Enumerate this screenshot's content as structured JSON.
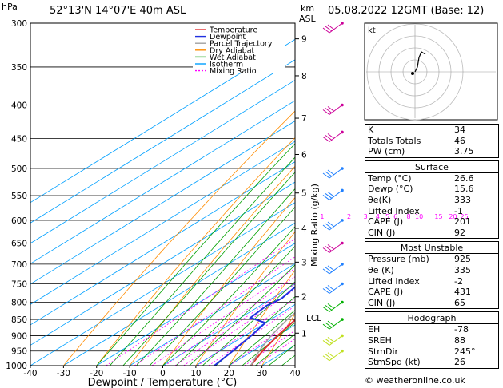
{
  "header": {
    "units_hpa": "hPa",
    "location": "52°13'N  14°07'E  40m  ASL",
    "units_km": "km",
    "units_asl": "ASL",
    "datetime": "05.08.2022  12GMT  (Base: 12)"
  },
  "credit": "© weatheronline.co.uk",
  "colors": {
    "temperature": "#e03030",
    "dewpoint": "#2030e0",
    "parcel": "#a0a0a0",
    "dry_adiabat": "#ff8c00",
    "wet_adiabat": "#00a000",
    "isotherm": "#00a0ff",
    "mixing_ratio": "#ff00ff"
  },
  "chart_data": {
    "type": "line",
    "xlabel": "Dewpoint / Temperature (°C)",
    "ylabel_right": "Mixing Ratio (g/kg)",
    "xlim": [
      -40,
      40
    ],
    "ylim": [
      1000,
      300
    ],
    "x_ticks": [
      -40,
      -30,
      -20,
      -10,
      0,
      10,
      20,
      30,
      40
    ],
    "pressure_levels": [
      300,
      350,
      400,
      450,
      500,
      550,
      600,
      650,
      700,
      750,
      800,
      850,
      900,
      950,
      1000
    ],
    "km_ticks": [
      {
        "label": "9",
        "p": 317
      },
      {
        "label": "8",
        "p": 361
      },
      {
        "label": "7",
        "p": 419
      },
      {
        "label": "6",
        "p": 476
      },
      {
        "label": "5",
        "p": 545
      },
      {
        "label": "4",
        "p": 617
      },
      {
        "label": "3",
        "p": 695
      },
      {
        "label": "2",
        "p": 785
      },
      {
        "label": "1",
        "p": 892
      }
    ],
    "lcl": {
      "label": "LCL",
      "p": 845
    },
    "mixing_ratio_labels": [
      {
        "label": "1",
        "t": -7
      },
      {
        "label": "2",
        "t": 2
      },
      {
        "label": "3",
        "t": 8
      },
      {
        "label": "4",
        "t": 12
      },
      {
        "label": "5",
        "t": 15
      },
      {
        "label": "6",
        "t": 17.5
      },
      {
        "label": "8",
        "t": 21
      },
      {
        "label": "10",
        "t": 24
      },
      {
        "label": "15",
        "t": 30
      },
      {
        "label": "20",
        "t": 34
      },
      {
        "label": "25",
        "t": 37
      }
    ],
    "legend": [
      "Temperature",
      "Dewpoint",
      "Parcel Trajectory",
      "Dry Adiabat",
      "Wet Adiabat",
      "Isotherm",
      "Mixing Ratio"
    ],
    "legend_position": "top-center",
    "series": [
      {
        "name": "Temperature",
        "points": [
          {
            "p": 1000,
            "t": 26.6
          },
          {
            "p": 950,
            "t": 23
          },
          {
            "p": 900,
            "t": 20
          },
          {
            "p": 850,
            "t": 17.5
          },
          {
            "p": 800,
            "t": 17.5
          },
          {
            "p": 750,
            "t": 14.5
          },
          {
            "p": 700,
            "t": 10.5
          },
          {
            "p": 650,
            "t": 7
          },
          {
            "p": 600,
            "t": 3
          },
          {
            "p": 550,
            "t": -2
          },
          {
            "p": 500,
            "t": -7
          },
          {
            "p": 450,
            "t": -13
          },
          {
            "p": 400,
            "t": -20
          },
          {
            "p": 350,
            "t": -28
          },
          {
            "p": 300,
            "t": -37
          }
        ]
      },
      {
        "name": "Dewpoint",
        "points": [
          {
            "p": 1000,
            "t": 15.6
          },
          {
            "p": 950,
            "t": 14
          },
          {
            "p": 900,
            "t": 12
          },
          {
            "p": 860,
            "t": 10
          },
          {
            "p": 845,
            "t": 3
          },
          {
            "p": 810,
            "t": 2
          },
          {
            "p": 790,
            "t": 3
          },
          {
            "p": 750,
            "t": 1
          },
          {
            "p": 700,
            "t": -1
          },
          {
            "p": 650,
            "t": -5
          },
          {
            "p": 620,
            "t": -4
          },
          {
            "p": 600,
            "t": -5
          },
          {
            "p": 550,
            "t": -11
          },
          {
            "p": 500,
            "t": -13
          },
          {
            "p": 460,
            "t": -16
          },
          {
            "p": 430,
            "t": -30
          },
          {
            "p": 400,
            "t": -29
          },
          {
            "p": 370,
            "t": -31
          },
          {
            "p": 350,
            "t": -40
          },
          {
            "p": 340,
            "t": -42
          },
          {
            "p": 300,
            "t": -45
          }
        ]
      },
      {
        "name": "Parcel Trajectory",
        "points": [
          {
            "p": 1000,
            "t": 26.6
          },
          {
            "p": 950,
            "t": 22
          },
          {
            "p": 900,
            "t": 18
          },
          {
            "p": 850,
            "t": 15
          },
          {
            "p": 800,
            "t": 12.5
          },
          {
            "p": 750,
            "t": 9.5
          },
          {
            "p": 700,
            "t": 6.5
          },
          {
            "p": 650,
            "t": 3.2
          },
          {
            "p": 600,
            "t": -0.5
          },
          {
            "p": 550,
            "t": -4.5
          },
          {
            "p": 500,
            "t": -9.5
          },
          {
            "p": 450,
            "t": -15
          },
          {
            "p": 400,
            "t": -21.5
          },
          {
            "p": 350,
            "t": -29
          },
          {
            "p": 300,
            "t": -38
          }
        ]
      }
    ]
  },
  "hodograph": {
    "label": "kt"
  },
  "wind_barb_colors": [
    "#cc0099",
    "#cc0099",
    "#cc0099",
    "#2080ff",
    "#2080ff",
    "#2080ff",
    "#cc0099",
    "#2080ff",
    "#2080ff",
    "#00b000",
    "#00b000",
    "#c0e020",
    "#c0e020"
  ],
  "stats": {
    "indices": [
      {
        "label": "K",
        "value": "34"
      },
      {
        "label": "Totals Totals",
        "value": "46"
      },
      {
        "label": "PW (cm)",
        "value": "3.75"
      }
    ],
    "surface": {
      "title": "Surface",
      "rows": [
        {
          "label": "Temp (°C)",
          "value": "26.6"
        },
        {
          "label": "Dewp (°C)",
          "value": "15.6"
        },
        {
          "label": "θe(K)",
          "value": "333"
        },
        {
          "label": "Lifted Index",
          "value": "-1"
        },
        {
          "label": "CAPE (J)",
          "value": "201"
        },
        {
          "label": "CIN (J)",
          "value": "92"
        }
      ]
    },
    "most_unstable": {
      "title": "Most Unstable",
      "rows": [
        {
          "label": "Pressure (mb)",
          "value": "925"
        },
        {
          "label": "θe (K)",
          "value": "335"
        },
        {
          "label": "Lifted Index",
          "value": "-2"
        },
        {
          "label": "CAPE (J)",
          "value": "431"
        },
        {
          "label": "CIN (J)",
          "value": "65"
        }
      ]
    },
    "hodograph": {
      "title": "Hodograph",
      "rows": [
        {
          "label": "EH",
          "value": "-78"
        },
        {
          "label": "SREH",
          "value": "88"
        },
        {
          "label": "StmDir",
          "value": "245°"
        },
        {
          "label": "StmSpd (kt)",
          "value": "26"
        }
      ]
    }
  }
}
